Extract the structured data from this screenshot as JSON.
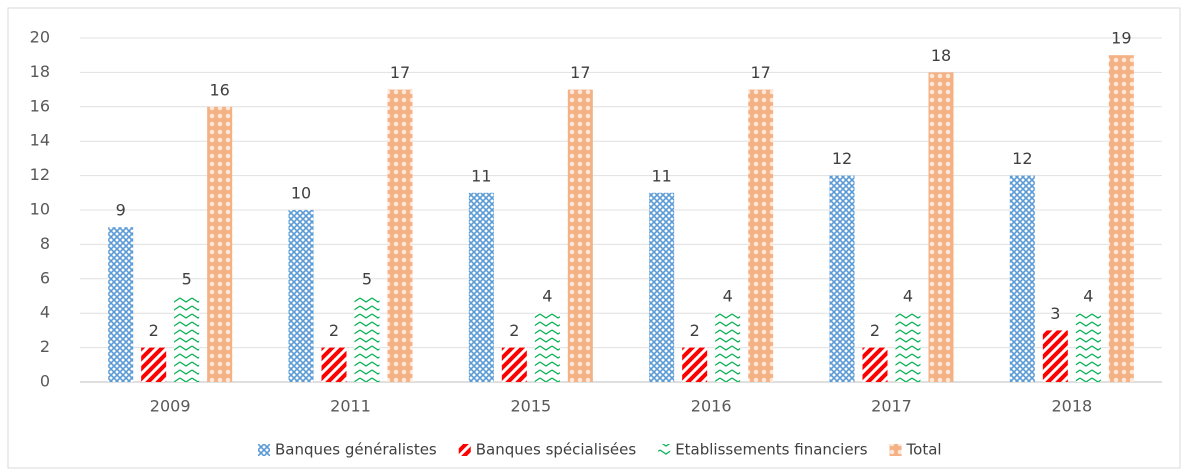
{
  "chart_data": {
    "type": "bar",
    "categories": [
      "2009",
      "2011",
      "2015",
      "2016",
      "2017",
      "2018"
    ],
    "series": [
      {
        "name": "Banques généralistes",
        "color": "#5b9bd5",
        "values": [
          9,
          10,
          11,
          11,
          12,
          12
        ]
      },
      {
        "name": "Banques spécialisées",
        "color": "#ff0000",
        "values": [
          2,
          2,
          2,
          2,
          2,
          3
        ]
      },
      {
        "name": "Etablissements financiers",
        "color": "#00b050",
        "values": [
          5,
          5,
          4,
          4,
          4,
          4
        ]
      },
      {
        "name": "Total",
        "color": "#f4b183",
        "values": [
          16,
          17,
          17,
          17,
          18,
          19
        ]
      }
    ],
    "ylim": [
      0,
      20
    ],
    "yticks": [
      0,
      2,
      4,
      6,
      8,
      10,
      12,
      14,
      16,
      18,
      20
    ],
    "grid": true,
    "legend": "bottom"
  }
}
